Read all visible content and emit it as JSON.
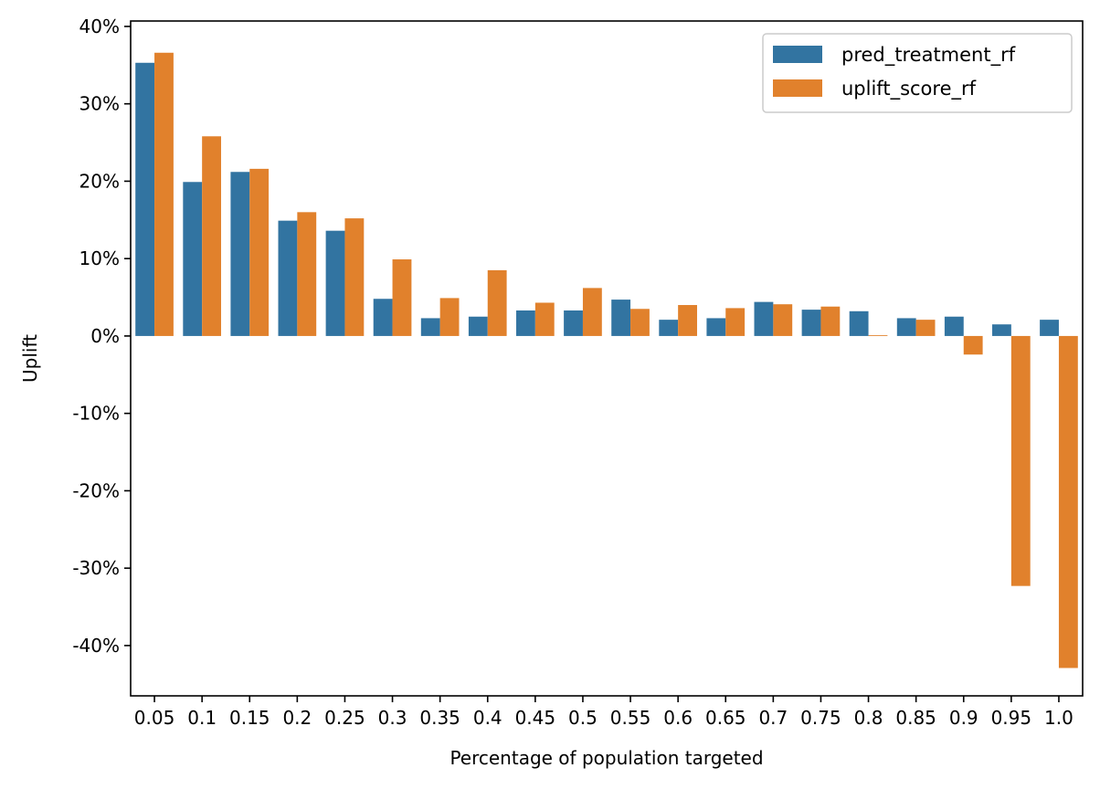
{
  "chart_data": {
    "type": "bar",
    "title": "",
    "xlabel": "Percentage of population targeted",
    "ylabel": "Uplift",
    "categories": [
      "0.05",
      "0.1",
      "0.15",
      "0.2",
      "0.25",
      "0.3",
      "0.35",
      "0.4",
      "0.45",
      "0.5",
      "0.55",
      "0.6",
      "0.65",
      "0.7",
      "0.75",
      "0.8",
      "0.85",
      "0.9",
      "0.95",
      "1.0"
    ],
    "series": [
      {
        "name": "pred_treatment_rf",
        "color": "#3274a1",
        "values": [
          35.3,
          19.9,
          21.2,
          14.9,
          13.6,
          4.8,
          2.3,
          2.5,
          3.3,
          3.3,
          4.7,
          2.1,
          2.3,
          4.4,
          3.4,
          3.2,
          2.3,
          2.5,
          1.5,
          2.1
        ]
      },
      {
        "name": "uplift_score_rf",
        "color": "#e1812c",
        "values": [
          36.6,
          25.8,
          21.6,
          16.0,
          15.2,
          9.9,
          4.9,
          8.5,
          4.3,
          6.2,
          3.5,
          4.0,
          3.6,
          4.1,
          3.8,
          0.1,
          2.1,
          -2.4,
          -32.3,
          -42.9
        ]
      }
    ],
    "ylim": [
      -46.5,
      40.7
    ],
    "yticks": [
      40,
      30,
      20,
      10,
      0,
      -10,
      -20,
      -30,
      -40
    ],
    "ytick_labels": [
      "40%",
      "30%",
      "20%",
      "10%",
      "0%",
      "-10%",
      "-20%",
      "-30%",
      "-40%"
    ],
    "grid": false,
    "legend_position": "top-right"
  }
}
